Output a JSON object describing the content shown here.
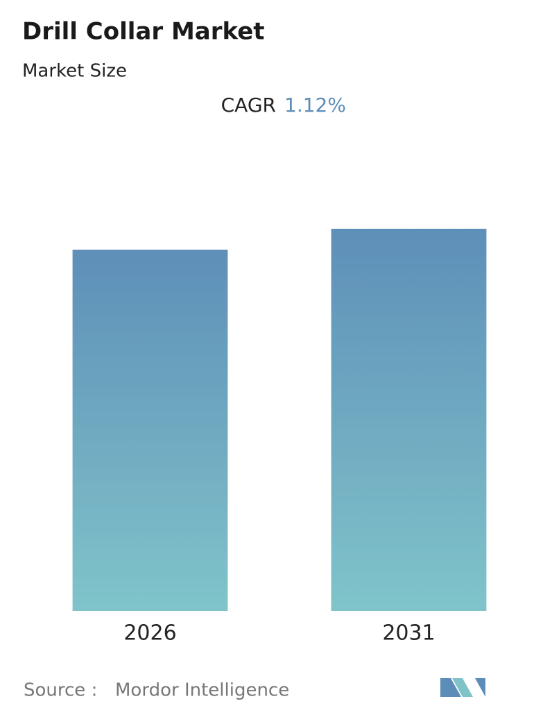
{
  "chart_data": {
    "type": "bar",
    "title": "Drill Collar Market",
    "subtitle": "Market Size",
    "cagr_label": "CAGR",
    "cagr_value": "1.12%",
    "categories": [
      "2026",
      "2031"
    ],
    "values": [
      100,
      105.8
    ],
    "ylim": [
      0,
      110
    ],
    "gradient": [
      "#5e8fb8",
      "#80c4ca"
    ],
    "source_label": "Source :",
    "source": "Mordor Intelligence"
  }
}
